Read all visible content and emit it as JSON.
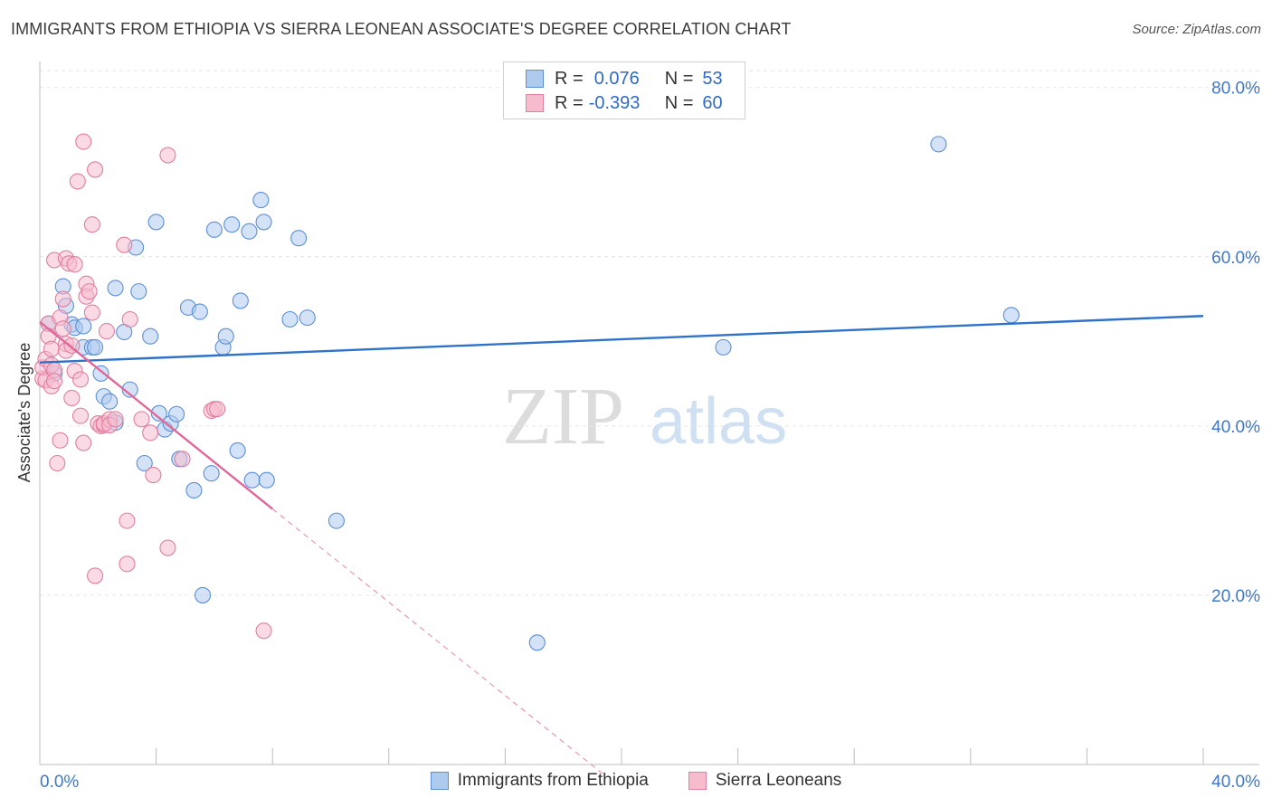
{
  "title": "IMMIGRANTS FROM ETHIOPIA VS SIERRA LEONEAN ASSOCIATE'S DEGREE CORRELATION CHART",
  "source": "Source: ZipAtlas.com",
  "watermark": {
    "zip": "ZIP",
    "atlas": "atlas"
  },
  "legend": {
    "rows": [
      {
        "r_label": "R =",
        "r_value": "0.076",
        "n_label": "N =",
        "n_value": "53"
      },
      {
        "r_label": "R =",
        "r_value": "-0.393",
        "n_label": "N =",
        "n_value": "60"
      }
    ]
  },
  "colors": {
    "blue_fill": "#aecbee",
    "blue_stroke": "#5b8fd6",
    "blue_line": "#2f72c9",
    "pink_fill": "#f6bccd",
    "pink_stroke": "#e07fa0",
    "pink_line": "#e0689a",
    "axis_text": "#3f78c8",
    "grid": "#e5e5e5"
  },
  "chart_data": {
    "type": "scatter",
    "title": "IMMIGRANTS FROM ETHIOPIA VS SIERRA LEONEAN ASSOCIATE'S DEGREE CORRELATION CHART",
    "xlabel": "",
    "ylabel": "Associate's Degree",
    "xlim": [
      0,
      40
    ],
    "ylim": [
      0,
      82
    ],
    "x_tick_labels": {
      "left": "0.0%",
      "right": "40.0%"
    },
    "y_ticks": [
      {
        "value": 20,
        "label": "20.0%"
      },
      {
        "value": 40,
        "label": "40.0%"
      },
      {
        "value": 60,
        "label": "60.0%"
      },
      {
        "value": 80,
        "label": "80.0%"
      }
    ],
    "series": [
      {
        "name": "Immigrants from Ethiopia",
        "points": [
          [
            0.3,
            52.1
          ],
          [
            0.5,
            46.2
          ],
          [
            0.8,
            56.5
          ],
          [
            0.9,
            54.2
          ],
          [
            1.1,
            52.0
          ],
          [
            1.2,
            51.6
          ],
          [
            1.5,
            51.8
          ],
          [
            1.5,
            49.3
          ],
          [
            1.8,
            49.3
          ],
          [
            1.9,
            49.3
          ],
          [
            2.1,
            46.2
          ],
          [
            2.2,
            43.5
          ],
          [
            2.4,
            42.9
          ],
          [
            2.6,
            40.4
          ],
          [
            2.6,
            56.3
          ],
          [
            2.9,
            51.1
          ],
          [
            3.1,
            44.3
          ],
          [
            3.3,
            61.1
          ],
          [
            3.4,
            55.9
          ],
          [
            3.6,
            35.6
          ],
          [
            3.8,
            50.6
          ],
          [
            4.0,
            64.1
          ],
          [
            4.1,
            41.5
          ],
          [
            4.3,
            39.6
          ],
          [
            4.5,
            40.3
          ],
          [
            4.7,
            41.4
          ],
          [
            4.8,
            36.1
          ],
          [
            5.1,
            54.0
          ],
          [
            5.3,
            32.4
          ],
          [
            5.5,
            53.5
          ],
          [
            5.6,
            20.0
          ],
          [
            5.9,
            34.4
          ],
          [
            6.0,
            63.2
          ],
          [
            6.3,
            49.3
          ],
          [
            6.4,
            50.6
          ],
          [
            6.6,
            63.8
          ],
          [
            6.8,
            37.1
          ],
          [
            6.9,
            54.8
          ],
          [
            7.2,
            63.0
          ],
          [
            7.3,
            33.6
          ],
          [
            7.6,
            66.7
          ],
          [
            7.7,
            64.1
          ],
          [
            7.8,
            33.6
          ],
          [
            8.6,
            52.6
          ],
          [
            8.9,
            62.2
          ],
          [
            9.2,
            52.8
          ],
          [
            10.2,
            28.8
          ],
          [
            17.1,
            14.4
          ],
          [
            23.5,
            49.3
          ],
          [
            30.9,
            73.3
          ],
          [
            33.4,
            53.1
          ]
        ]
      },
      {
        "name": "Sierra Leoneans",
        "points": [
          [
            0.1,
            45.6
          ],
          [
            0.1,
            46.9
          ],
          [
            0.2,
            45.4
          ],
          [
            0.2,
            47.9
          ],
          [
            0.3,
            52.1
          ],
          [
            0.3,
            50.6
          ],
          [
            0.4,
            44.7
          ],
          [
            0.4,
            47.2
          ],
          [
            0.4,
            49.1
          ],
          [
            0.5,
            46.6
          ],
          [
            0.5,
            45.3
          ],
          [
            0.5,
            59.6
          ],
          [
            0.6,
            35.6
          ],
          [
            0.7,
            52.8
          ],
          [
            0.7,
            38.3
          ],
          [
            0.8,
            51.5
          ],
          [
            0.8,
            55.0
          ],
          [
            0.9,
            49.7
          ],
          [
            0.9,
            48.9
          ],
          [
            0.9,
            59.8
          ],
          [
            1.0,
            59.2
          ],
          [
            1.1,
            43.3
          ],
          [
            1.1,
            49.5
          ],
          [
            1.2,
            59.1
          ],
          [
            1.2,
            46.5
          ],
          [
            1.3,
            68.9
          ],
          [
            1.4,
            45.5
          ],
          [
            1.4,
            41.2
          ],
          [
            1.5,
            38.0
          ],
          [
            1.5,
            73.6
          ],
          [
            1.6,
            56.8
          ],
          [
            1.6,
            55.3
          ],
          [
            1.7,
            55.9
          ],
          [
            1.8,
            63.8
          ],
          [
            1.8,
            53.4
          ],
          [
            1.9,
            70.3
          ],
          [
            1.9,
            22.3
          ],
          [
            2.0,
            40.3
          ],
          [
            2.1,
            40.0
          ],
          [
            2.2,
            40.1
          ],
          [
            2.2,
            40.3
          ],
          [
            2.3,
            51.2
          ],
          [
            2.4,
            40.8
          ],
          [
            2.4,
            40.1
          ],
          [
            2.6,
            40.8
          ],
          [
            2.9,
            61.4
          ],
          [
            3.0,
            28.8
          ],
          [
            3.0,
            23.7
          ],
          [
            3.1,
            52.6
          ],
          [
            3.5,
            40.8
          ],
          [
            3.8,
            39.2
          ],
          [
            3.9,
            34.2
          ],
          [
            4.4,
            72.0
          ],
          [
            4.4,
            25.6
          ],
          [
            4.9,
            36.1
          ],
          [
            5.9,
            41.8
          ],
          [
            6.0,
            42.0
          ],
          [
            6.1,
            42.0
          ],
          [
            7.7,
            15.8
          ]
        ]
      }
    ],
    "trend_lines": [
      {
        "series": "Immigrants from Ethiopia",
        "x": [
          0,
          40
        ],
        "y": [
          47.5,
          53.0
        ]
      },
      {
        "series": "Sierra Leoneans",
        "x": [
          0,
          8.0
        ],
        "y": [
          52.3,
          30.2
        ],
        "dashed_extension": {
          "x": [
            8.0,
            19.5
          ],
          "y": [
            30.2,
            -1.5
          ]
        }
      }
    ]
  },
  "bottom_legend": [
    {
      "label": "Immigrants from Ethiopia"
    },
    {
      "label": "Sierra Leoneans"
    }
  ]
}
